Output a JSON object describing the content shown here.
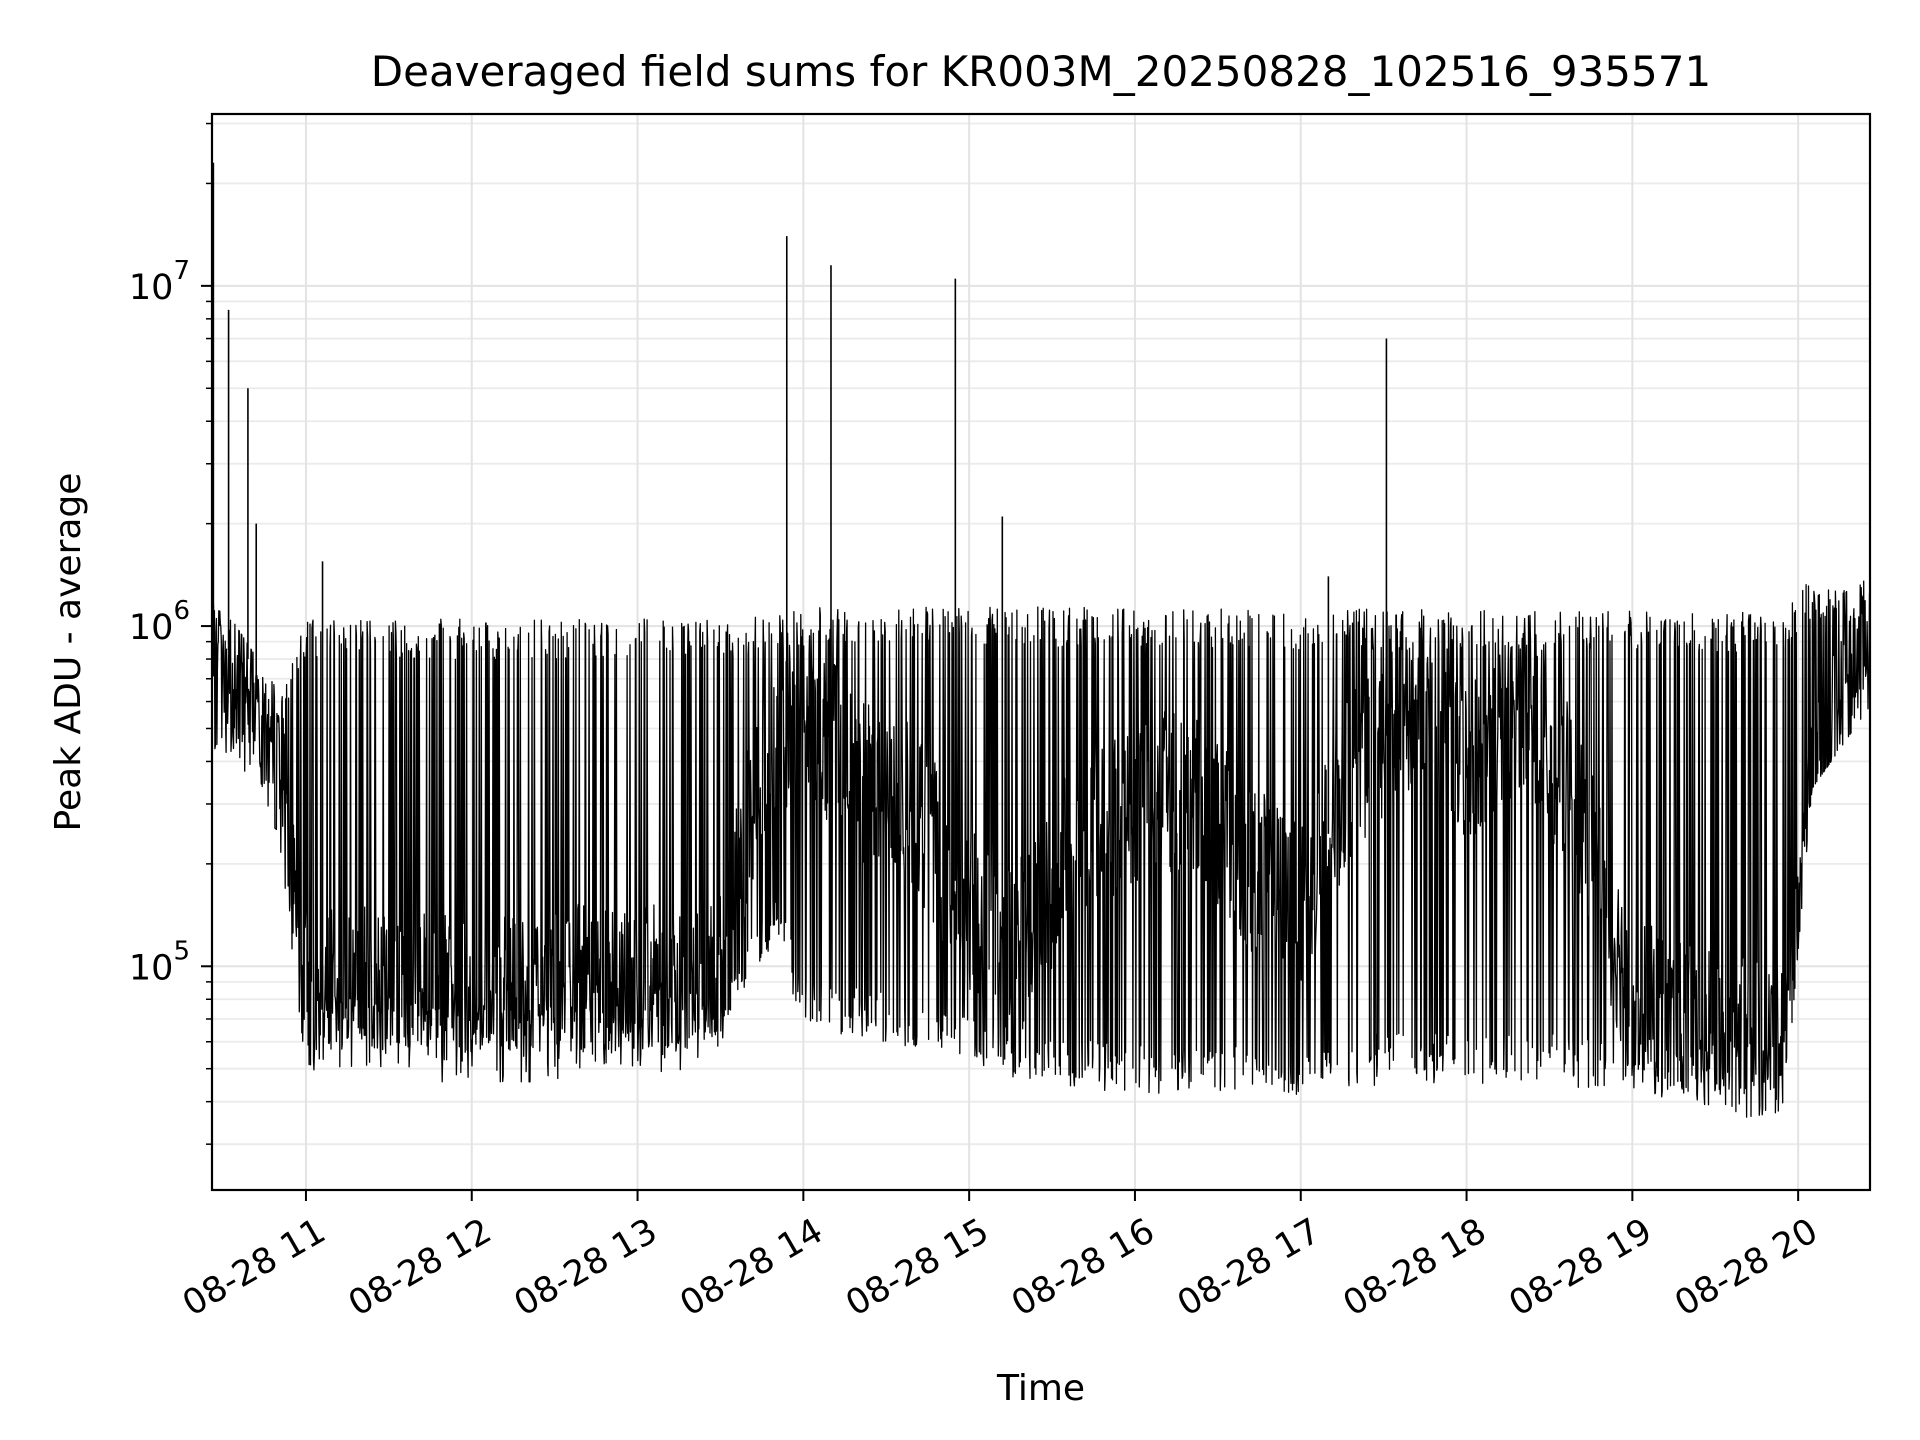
{
  "chart_data": {
    "type": "line",
    "title": "Deaveraged field sums for KR003M_20250828_102516_935571",
    "xlabel": "Time",
    "ylabel": "Peak ADU - average",
    "yscale": "log",
    "xlim": [
      "2025-08-28T10:26:00",
      "2025-08-28T20:26:00"
    ],
    "ylim": [
      22000,
      32000000
    ],
    "grid": true,
    "minor_grid": true,
    "line_color": "#000000",
    "x_ticks": [
      {
        "value": "2025-08-28T11:00:00",
        "label": "08-28 11"
      },
      {
        "value": "2025-08-28T12:00:00",
        "label": "08-28 12"
      },
      {
        "value": "2025-08-28T13:00:00",
        "label": "08-28 13"
      },
      {
        "value": "2025-08-28T14:00:00",
        "label": "08-28 14"
      },
      {
        "value": "2025-08-28T15:00:00",
        "label": "08-28 15"
      },
      {
        "value": "2025-08-28T16:00:00",
        "label": "08-28 16"
      },
      {
        "value": "2025-08-28T17:00:00",
        "label": "08-28 17"
      },
      {
        "value": "2025-08-28T18:00:00",
        "label": "08-28 18"
      },
      {
        "value": "2025-08-28T19:00:00",
        "label": "08-28 19"
      },
      {
        "value": "2025-08-28T20:00:00",
        "label": "08-28 20"
      }
    ],
    "y_ticks": [
      {
        "value": 100000,
        "base": "10",
        "exp": "5"
      },
      {
        "value": 1000000,
        "base": "10",
        "exp": "6"
      },
      {
        "value": 10000000,
        "base": "10",
        "exp": "7"
      }
    ],
    "series": [
      {
        "x": [
          "2025-08-28T10:26:00",
          "2025-08-28T10:32:00",
          "2025-08-28T10:39:00",
          "2025-08-28T10:45:00",
          "2025-08-28T10:52:00",
          "2025-08-28T10:58:00",
          "2025-08-28T11:05:00",
          "2025-08-28T11:15:00",
          "2025-08-28T11:30:00",
          "2025-08-28T11:45:00",
          "2025-08-28T12:00:00",
          "2025-08-28T12:15:00",
          "2025-08-28T12:30:00",
          "2025-08-28T12:45:00",
          "2025-08-28T13:00:00",
          "2025-08-28T13:15:00",
          "2025-08-28T13:30:00",
          "2025-08-28T13:40:00",
          "2025-08-28T13:50:00",
          "2025-08-28T14:00:00",
          "2025-08-28T14:20:00",
          "2025-08-28T14:40:00",
          "2025-08-28T15:00:00",
          "2025-08-28T15:20:00",
          "2025-08-28T15:40:00",
          "2025-08-28T16:00:00",
          "2025-08-28T16:20:00",
          "2025-08-28T16:40:00",
          "2025-08-28T17:00:00",
          "2025-08-28T17:20:00",
          "2025-08-28T17:40:00",
          "2025-08-28T18:00:00",
          "2025-08-28T18:20:00",
          "2025-08-28T18:40:00",
          "2025-08-28T19:00:00",
          "2025-08-28T19:20:00",
          "2025-08-28T19:40:00",
          "2025-08-28T19:55:00",
          "2025-08-28T20:05:00",
          "2025-08-28T20:15:00",
          "2025-08-28T20:26:00"
        ],
        "y": [
          700000,
          850000,
          800000,
          550000,
          300000,
          90000,
          80000,
          90000,
          85000,
          80000,
          80000,
          78000,
          82000,
          90000,
          90000,
          85000,
          95000,
          250000,
          450000,
          600000,
          350000,
          300000,
          150000,
          120000,
          250000,
          300000,
          350000,
          200000,
          150000,
          400000,
          550000,
          400000,
          600000,
          300000,
          80000,
          65000,
          60000,
          60000,
          200000,
          600000,
          900000
        ]
      }
    ],
    "min_band": {
      "x": [
        "2025-08-28T10:26:00",
        "2025-08-28T10:50:00",
        "2025-08-28T11:00:00",
        "2025-08-28T11:45:00",
        "2025-08-28T12:30:00",
        "2025-08-28T13:00:00",
        "2025-08-28T13:30:00",
        "2025-08-28T13:50:00",
        "2025-08-28T14:00:00",
        "2025-08-28T14:30:00",
        "2025-08-28T15:00:00",
        "2025-08-28T15:30:00",
        "2025-08-28T16:00:00",
        "2025-08-28T16:30:00",
        "2025-08-28T17:00:00",
        "2025-08-28T17:30:00",
        "2025-08-28T18:00:00",
        "2025-08-28T18:30:00",
        "2025-08-28T19:00:00",
        "2025-08-28T19:30:00",
        "2025-08-28T19:55:00",
        "2025-08-28T20:05:00",
        "2025-08-28T20:26:00"
      ],
      "y": [
        450000,
        300000,
        60000,
        55000,
        55000,
        55000,
        60000,
        120000,
        65000,
        60000,
        50000,
        45000,
        42000,
        42000,
        42000,
        45000,
        45000,
        45000,
        42000,
        42000,
        45000,
        400000,
        700000
      ]
    },
    "max_band": {
      "x": [
        "2025-08-28T10:26:00",
        "2025-08-28T10:50:00",
        "2025-08-28T11:00:00",
        "2025-08-28T13:30:00",
        "2025-08-28T13:50:00",
        "2025-08-28T14:00:00",
        "2025-08-28T19:55:00",
        "2025-08-28T20:05:00",
        "2025-08-28T20:26:00"
      ],
      "y": [
        1200000,
        600000,
        1050000,
        1050000,
        1100000,
        1150000,
        1100000,
        1400000,
        1250000
      ]
    },
    "spikes": [
      {
        "x": "2025-08-28T10:26:30",
        "y": 23000000
      },
      {
        "x": "2025-08-28T10:32:00",
        "y": 8500000
      },
      {
        "x": "2025-08-28T10:39:00",
        "y": 5000000
      },
      {
        "x": "2025-08-28T10:42:00",
        "y": 2000000
      },
      {
        "x": "2025-08-28T11:06:00",
        "y": 1550000
      },
      {
        "x": "2025-08-28T13:54:00",
        "y": 14000000
      },
      {
        "x": "2025-08-28T14:10:00",
        "y": 11500000
      },
      {
        "x": "2025-08-28T14:55:00",
        "y": 10500000
      },
      {
        "x": "2025-08-28T15:12:00",
        "y": 2100000
      },
      {
        "x": "2025-08-28T17:31:00",
        "y": 7000000
      },
      {
        "x": "2025-08-28T17:10:00",
        "y": 1400000
      }
    ]
  }
}
